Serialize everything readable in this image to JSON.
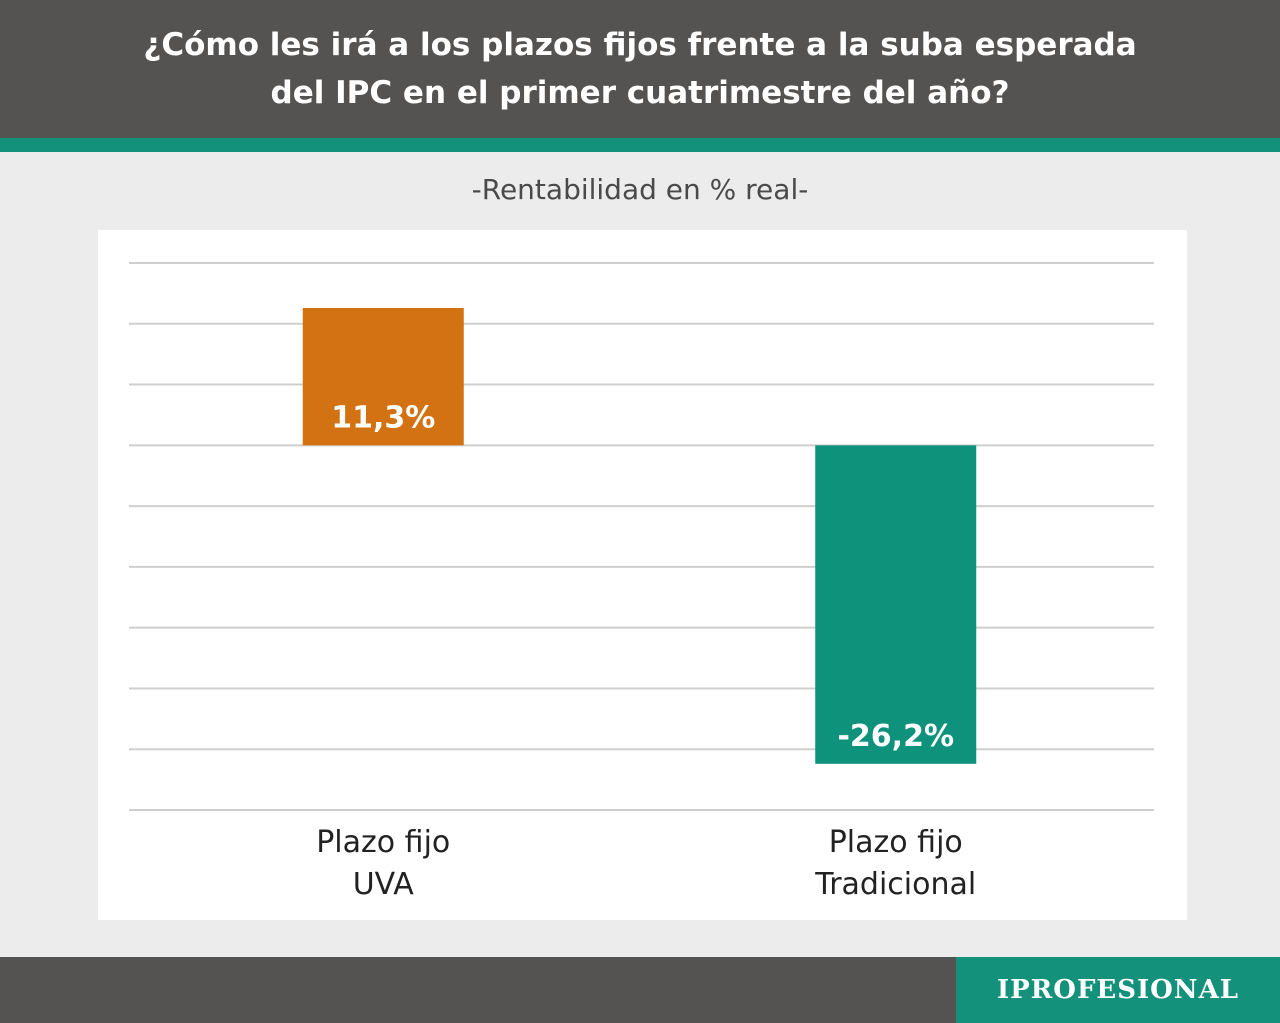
{
  "header": {
    "title": "¿Cómo les irá a los plazos fijos frente a la suba esperada del IPC en el primer cuatrimestre del año?"
  },
  "brand": "IPROFESIONAL",
  "colors": {
    "header_bg": "#555352",
    "accent": "#14917a",
    "bar_positive": "#d27213",
    "bar_negative": "#0e927b"
  },
  "chart_data": {
    "type": "bar",
    "subtitle": "-Rentabilidad en % real-",
    "categories": [
      [
        "Plazo fijo",
        "UVA"
      ],
      [
        "Plazo fijo",
        "Tradicional"
      ]
    ],
    "values": [
      11.3,
      -26.2
    ],
    "data_labels": [
      "11,3%",
      "-26,2%"
    ],
    "bar_colors": [
      "#d27213",
      "#0e927b"
    ],
    "ylim": [
      -30,
      15
    ],
    "gridlines": true,
    "gridline_count": 10,
    "legend": false,
    "xlabel": "",
    "ylabel": ""
  }
}
